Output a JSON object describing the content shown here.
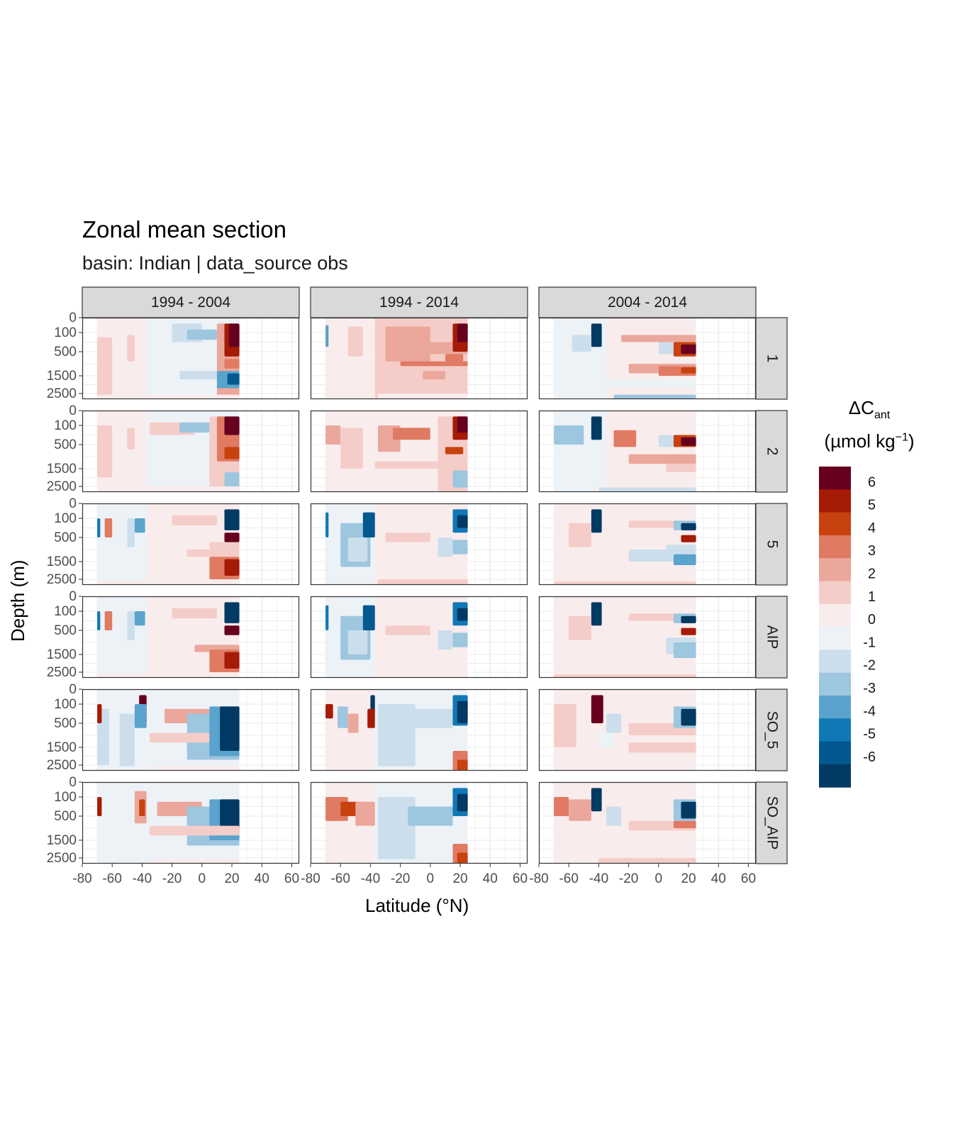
{
  "title": "Zonal mean section",
  "subtitle": "basin: Indian | data_source obs",
  "chart_data": {
    "type": "heatmap",
    "facet_cols": [
      "1994 - 2004",
      "1994 - 2014",
      "2004 - 2014"
    ],
    "facet_rows": [
      "1",
      "2",
      "5",
      "AIP",
      "SO_5",
      "SO_AIP"
    ],
    "xlabel": "Latitude (°N)",
    "ylabel": "Depth (m)",
    "x_ticks": [
      "-80",
      "-60",
      "-40",
      "-20",
      "0",
      "20",
      "40",
      "60"
    ],
    "y_ticks": [
      "0",
      "100",
      "500",
      "1500",
      "2500"
    ],
    "x_range": [
      -80,
      65
    ],
    "y_range": [
      0,
      3000
    ],
    "legend": {
      "title_main": "ΔC",
      "title_sub": "ant",
      "unit_pre": "(µmol kg",
      "unit_sup": "−1",
      "unit_post": ")",
      "labels": [
        "6",
        "5",
        "4",
        "3",
        "2",
        "1",
        "0",
        "-1",
        "-2",
        "-3",
        "-4",
        "-5",
        "-6"
      ],
      "colors": [
        "#67001f",
        "#a61b06",
        "#c8420f",
        "#e07a62",
        "#eba79b",
        "#f5cdc8",
        "#f9ecec",
        "#edf2f7",
        "#ccdeec",
        "#9dc6df",
        "#5aa3cc",
        "#1078b5",
        "#02588f",
        "#023a63"
      ]
    }
  }
}
